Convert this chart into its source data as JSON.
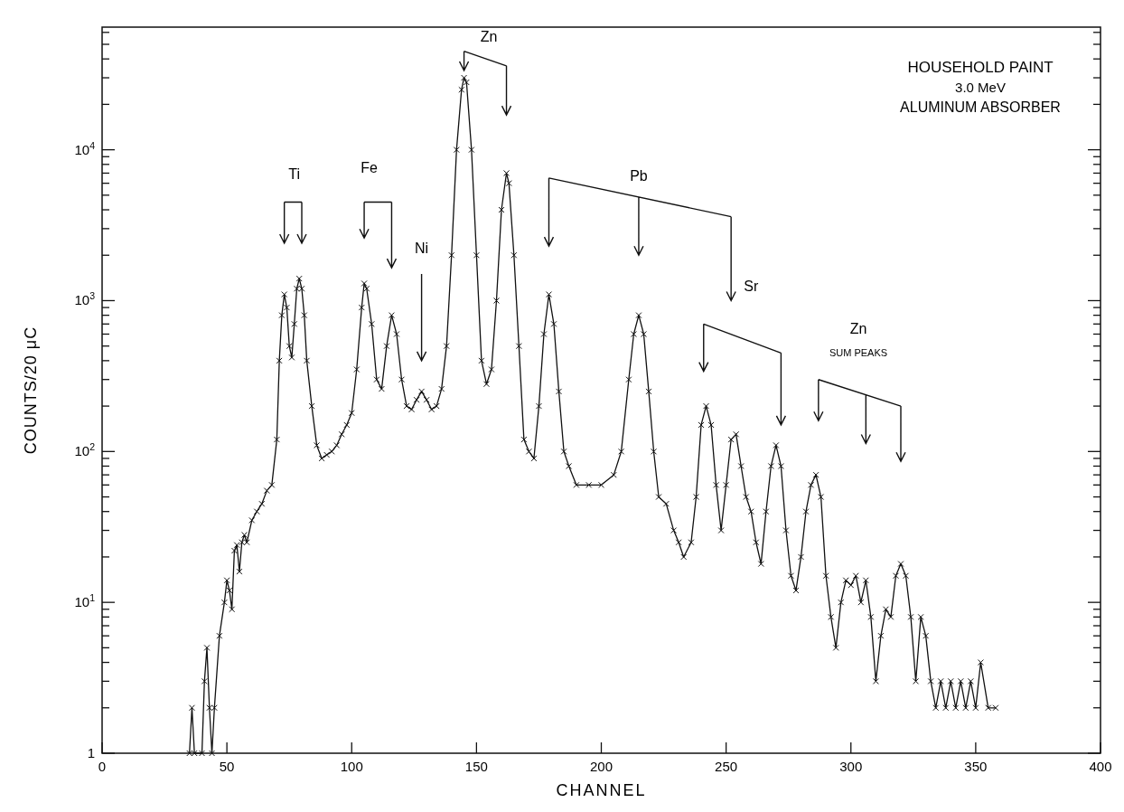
{
  "chart_data": {
    "type": "line",
    "title": "HOUSEHOLD PAINT",
    "subtitle": "3.0 MeV",
    "xlabel": "CHANNEL",
    "ylabel": "COUNTS/20 μC",
    "log": "y",
    "marker": "cross",
    "line_style": "solid",
    "grid": false,
    "xlim": [
      0,
      400
    ],
    "xticks": [
      0,
      50,
      100,
      150,
      200,
      250,
      300,
      350,
      400
    ],
    "ylim": [
      1,
      65000
    ],
    "yticks": [
      {
        "value": 1,
        "label": "1"
      },
      {
        "value": 2,
        "label": null
      },
      {
        "value": 3,
        "label": null
      },
      {
        "value": 4,
        "label": null
      },
      {
        "value": 5,
        "label": null
      },
      {
        "value": 6,
        "label": null
      },
      {
        "value": 7,
        "label": null
      },
      {
        "value": 8,
        "label": null
      },
      {
        "value": 9,
        "label": null
      },
      {
        "value": 10,
        "label": "10$^{1}$"
      },
      {
        "value": 20,
        "label": null
      },
      {
        "value": 30,
        "label": null
      },
      {
        "value": 40,
        "label": null
      },
      {
        "value": 50,
        "label": null
      },
      {
        "value": 60,
        "label": null
      },
      {
        "value": 70,
        "label": null
      },
      {
        "value": 80,
        "label": null
      },
      {
        "value": 90,
        "label": null
      },
      {
        "value": 100,
        "label": "10$^{2}$"
      },
      {
        "value": 200,
        "label": null
      },
      {
        "value": 300,
        "label": null
      },
      {
        "value": 400,
        "label": null
      },
      {
        "value": 500,
        "label": null
      },
      {
        "value": 600,
        "label": null
      },
      {
        "value": 700,
        "label": null
      },
      {
        "value": 800,
        "label": null
      },
      {
        "value": 900,
        "label": null
      },
      {
        "value": 1000,
        "label": "10$^{3}$"
      },
      {
        "value": 2000,
        "label": null
      },
      {
        "value": 3000,
        "label": null
      },
      {
        "value": 4000,
        "label": null
      },
      {
        "value": 5000,
        "label": null
      },
      {
        "value": 6000,
        "label": null
      },
      {
        "value": 7000,
        "label": null
      },
      {
        "value": 8000,
        "label": null
      },
      {
        "value": 9000,
        "label": null
      },
      {
        "value": 10000,
        "label": "10$^{4}$"
      },
      {
        "value": 20000,
        "label": null
      },
      {
        "value": 30000,
        "label": null
      },
      {
        "value": 40000,
        "label": null
      },
      {
        "value": 50000,
        "label": null
      },
      {
        "value": 60000,
        "label": null
      }
    ],
    "annotations": [
      "ALUMINUM ABSORBER",
      "Ti",
      "Fe",
      "Ni",
      {
        "text": "Zn",
        "x": 145,
        "y": 30000
      },
      "Pb",
      "Sr",
      "Zn",
      "SUM PEAKS"
    ],
    "series": [
      {
        "color": "#111111",
        "x": [
          35,
          36,
          37,
          40,
          41,
          42,
          43,
          44,
          45,
          47,
          49,
          50,
          51,
          52,
          53,
          54,
          55,
          56,
          57,
          58,
          60,
          62,
          64,
          66,
          68,
          70,
          71,
          72,
          73,
          74,
          75,
          76,
          77,
          78,
          79,
          80,
          81,
          82,
          84,
          86,
          88,
          90,
          92,
          94,
          96,
          98,
          100,
          102,
          104,
          105,
          106,
          108,
          110,
          112,
          114,
          116,
          118,
          120,
          122,
          124,
          126,
          128,
          130,
          132,
          134,
          136,
          138,
          140,
          142,
          144,
          145,
          146,
          148,
          150,
          152,
          154,
          156,
          158,
          160,
          162,
          163,
          165,
          167,
          169,
          171,
          173,
          175,
          177,
          179,
          181,
          183,
          185,
          187,
          190,
          195,
          200,
          205,
          208,
          211,
          213,
          215,
          217,
          219,
          221,
          223,
          226,
          229,
          231,
          233,
          236,
          238,
          240,
          242,
          244,
          246,
          248,
          250,
          252,
          254,
          256,
          258,
          260,
          262,
          264,
          266,
          268,
          270,
          272,
          274,
          276,
          278,
          280,
          282,
          284,
          286,
          288,
          290,
          292,
          294,
          296,
          298,
          300,
          302,
          304,
          306,
          308,
          310,
          312,
          314,
          316,
          318,
          320,
          322,
          324,
          326,
          328,
          330,
          332,
          334,
          336,
          338,
          340,
          342,
          344,
          346,
          348,
          350,
          352,
          355,
          358
        ],
        "values": [
          1,
          2,
          1,
          1,
          3,
          5,
          2,
          1,
          2,
          6,
          10,
          14,
          12,
          9,
          22,
          24,
          16,
          25,
          28,
          25,
          35,
          40,
          45,
          55,
          60,
          120,
          400,
          800,
          1100,
          900,
          500,
          420,
          700,
          1200,
          1400,
          1200,
          800,
          400,
          200,
          110,
          90,
          95,
          100,
          110,
          130,
          150,
          180,
          350,
          900,
          1300,
          1200,
          700,
          300,
          260,
          500,
          800,
          600,
          300,
          200,
          190,
          220,
          250,
          220,
          190,
          200,
          260,
          500,
          2000,
          10000,
          25000,
          30000,
          28000,
          10000,
          2000,
          400,
          280,
          350,
          1000,
          4000,
          7000,
          6000,
          2000,
          500,
          120,
          100,
          90,
          200,
          600,
          1100,
          700,
          250,
          100,
          80,
          60,
          60,
          60,
          70,
          100,
          300,
          600,
          800,
          600,
          250,
          100,
          50,
          45,
          30,
          25,
          20,
          25,
          50,
          150,
          200,
          150,
          60,
          30,
          60,
          120,
          130,
          80,
          50,
          40,
          25,
          18,
          40,
          80,
          110,
          80,
          30,
          15,
          12,
          20,
          40,
          60,
          70,
          50,
          15,
          8,
          5,
          10,
          14,
          13,
          15,
          10,
          14,
          8,
          3,
          6,
          9,
          8,
          15,
          18,
          15,
          8,
          3,
          8,
          6,
          3,
          2,
          3,
          2,
          3,
          2,
          3,
          2,
          3,
          2,
          4,
          2,
          2
        ]
      }
    ]
  }
}
